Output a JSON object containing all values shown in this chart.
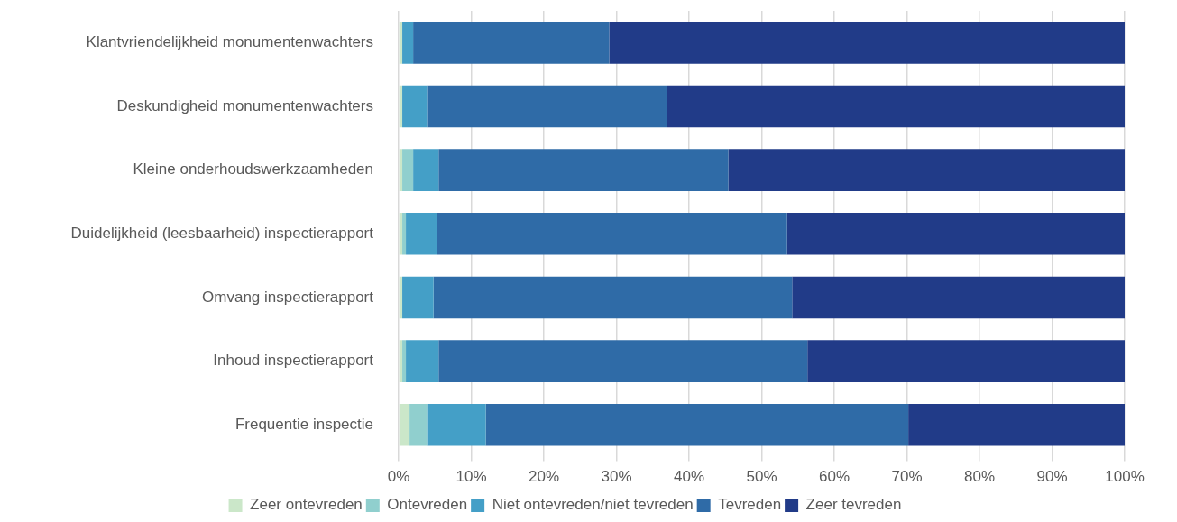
{
  "chart_data": {
    "type": "bar",
    "orientation": "horizontal",
    "stacked": true,
    "categories": [
      "Klantvriendelijkheid monumentenwachters",
      "Deskundigheid monumentenwachters",
      "Kleine onderhoudswerkzaamheden",
      "Duidelijkheid (leesbaarheid) inspectierapport",
      "Omvang inspectierapport",
      "Inhoud inspectierapport",
      "Frequentie inspectie"
    ],
    "series": [
      {
        "name": "Zeer ontevreden",
        "color": "#cbe7c9",
        "values": [
          0.5,
          0.5,
          0.5,
          0.5,
          0.5,
          0.5,
          1.5
        ]
      },
      {
        "name": "Ontevreden",
        "color": "#90cfce",
        "values": [
          0,
          0,
          1.5,
          0.5,
          0,
          0.5,
          2.4
        ]
      },
      {
        "name": "Niet ontevreden/niet tevreden",
        "color": "#449fc7",
        "values": [
          1.5,
          3.4,
          3.5,
          4.3,
          4.3,
          4.5,
          8.1
        ]
      },
      {
        "name": "Tevreden",
        "color": "#2f6ba7",
        "values": [
          27,
          33.1,
          39.9,
          48.2,
          49.4,
          50.8,
          58.2
        ]
      },
      {
        "name": "Zeer tevreden",
        "color": "#213b88",
        "values": [
          71,
          63,
          54.6,
          46.5,
          45.8,
          43.7,
          29.8
        ]
      }
    ],
    "xlim": [
      0,
      100
    ],
    "xticks": [
      {
        "value": 0,
        "label": "0%"
      },
      {
        "value": 10,
        "label": "10%"
      },
      {
        "value": 20,
        "label": "20%"
      },
      {
        "value": 30,
        "label": "30%"
      },
      {
        "value": 40,
        "label": "40%"
      },
      {
        "value": 50,
        "label": "50%"
      },
      {
        "value": 60,
        "label": "60%"
      },
      {
        "value": 70,
        "label": "70%"
      },
      {
        "value": 80,
        "label": "80%"
      },
      {
        "value": 90,
        "label": "90%"
      },
      {
        "value": 100,
        "label": "100%"
      }
    ],
    "grid": "x",
    "legend": "bottom"
  }
}
